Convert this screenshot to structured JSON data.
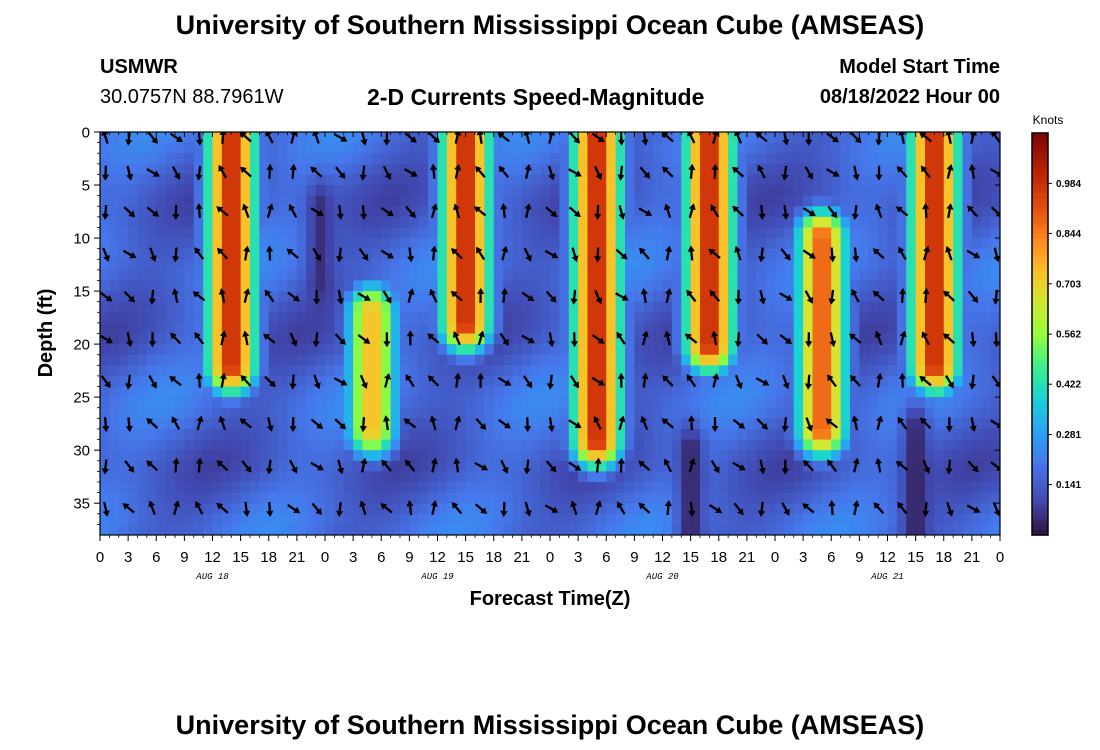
{
  "header": {
    "title": "University of Southern Mississippi Ocean Cube (AMSEAS)",
    "station_id": "USMWR",
    "coordinates": "30.0757N  88.7961W",
    "subtitle": "2-D Currents Speed-Magnitude",
    "model_label": "Model Start Time",
    "model_time": "08/18/2022 Hour 00"
  },
  "footer": {
    "title": "University of Southern Mississippi Ocean Cube (AMSEAS)"
  },
  "colorbar": {
    "unit_label": "Knots",
    "ticks": [
      "0.984",
      "0.844",
      "0.703",
      "0.562",
      "0.422",
      "0.281",
      "0.141"
    ],
    "tick_values": [
      0.984,
      0.844,
      0.703,
      0.562,
      0.422,
      0.281,
      0.141
    ],
    "range": [
      0.0,
      1.125
    ]
  },
  "chart_data": {
    "type": "heatmap",
    "title": "2-D Currents Speed-Magnitude",
    "xlabel": "Forecast Time(Z)",
    "ylabel": "Depth (ft)",
    "x_tick_labels": [
      "0",
      "3",
      "6",
      "9",
      "12",
      "15",
      "18",
      "21",
      "0",
      "3",
      "6",
      "9",
      "12",
      "15",
      "18",
      "21",
      "0",
      "3",
      "6",
      "9",
      "12",
      "15",
      "18",
      "21",
      "0",
      "3",
      "6",
      "9",
      "12",
      "15",
      "18",
      "21",
      "0"
    ],
    "x_range_hours": [
      0,
      96
    ],
    "day_labels": [
      {
        "label": "AUG 18",
        "hour": 12
      },
      {
        "label": "AUG 19",
        "hour": 36
      },
      {
        "label": "AUG 20",
        "hour": 60
      },
      {
        "label": "AUG 21",
        "hour": 84
      }
    ],
    "y_tick_labels": [
      "0",
      "5",
      "10",
      "15",
      "20",
      "25",
      "30",
      "35"
    ],
    "y_tick_values": [
      0,
      5,
      10,
      15,
      20,
      25,
      30,
      35
    ],
    "y_range_ft": [
      0,
      38
    ],
    "speed_maxima_knots": [
      {
        "hour": 14,
        "top_ft": 0,
        "bottom_ft": 22,
        "speed": 1.0
      },
      {
        "hour": 29,
        "top_ft": 17,
        "bottom_ft": 28,
        "speed": 0.75
      },
      {
        "hour": 39,
        "top_ft": 0,
        "bottom_ft": 18,
        "speed": 1.0
      },
      {
        "hour": 53,
        "top_ft": 0,
        "bottom_ft": 29,
        "speed": 1.0
      },
      {
        "hour": 65,
        "top_ft": 0,
        "bottom_ft": 20,
        "speed": 1.0
      },
      {
        "hour": 77,
        "top_ft": 10,
        "bottom_ft": 28,
        "speed": 0.9
      },
      {
        "hour": 89,
        "top_ft": 0,
        "bottom_ft": 22,
        "speed": 1.0
      }
    ],
    "speed_minima_knots": [
      {
        "hour": 23.5,
        "top_ft": 7,
        "bottom_ft": 14,
        "speed": 0.05
      },
      {
        "hour": 63,
        "top_ft": 30,
        "bottom_ft": 38,
        "speed": 0.03
      },
      {
        "hour": 87,
        "top_ft": 28,
        "bottom_ft": 38,
        "speed": 0.03
      }
    ]
  }
}
